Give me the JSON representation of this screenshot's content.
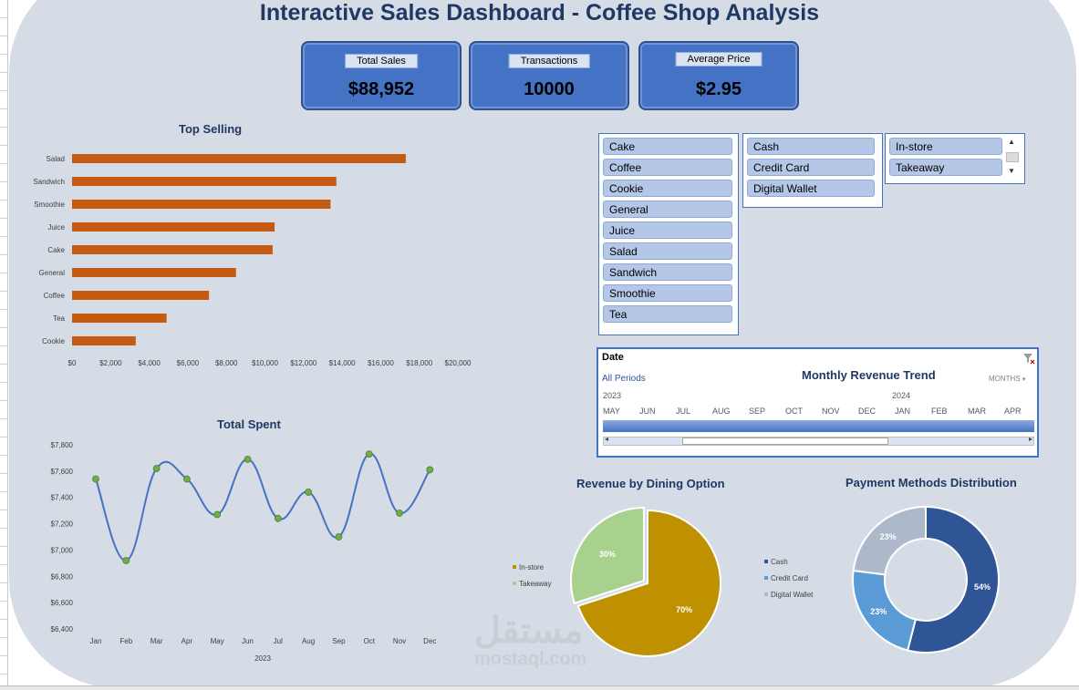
{
  "title": "Interactive Sales Dashboard - Coffee Shop Analysis",
  "kpis": {
    "total_sales": {
      "label": "Total Sales",
      "value": "$88,952"
    },
    "transactions": {
      "label": "Transactions",
      "value": "10000"
    },
    "average_price": {
      "label": "Average Price",
      "value": "$2.95"
    }
  },
  "slicers": {
    "product": [
      "Cake",
      "Coffee",
      "Cookie",
      "General",
      "Juice",
      "Salad",
      "Sandwich",
      "Smoothie",
      "Tea"
    ],
    "payment": [
      "Cash",
      "Credit Card",
      "Digital Wallet"
    ],
    "dining": [
      "In-store",
      "Takeaway"
    ]
  },
  "timeline": {
    "header": "Date",
    "all_periods": "All Periods",
    "title": "Monthly Revenue Trend",
    "level": "MONTHS",
    "years": [
      "2023",
      "2024"
    ],
    "months": [
      "MAY",
      "JUN",
      "JUL",
      "AUG",
      "SEP",
      "OCT",
      "NOV",
      "DEC",
      "JAN",
      "FEB",
      "MAR",
      "APR"
    ],
    "filter_icon": "clear-filter-icon"
  },
  "watermark": {
    "arabic": "مستقل",
    "latin": "mostaql.com"
  },
  "chart_data": [
    {
      "type": "bar",
      "title": "Top Selling",
      "categories": [
        "Salad",
        "Sandwich",
        "Smoothie",
        "Juice",
        "Cake",
        "General",
        "Coffee",
        "Tea",
        "Cookie"
      ],
      "values": [
        17300,
        13700,
        13400,
        10500,
        10400,
        8500,
        7100,
        4900,
        3300
      ],
      "xlim": [
        0,
        20000
      ],
      "xticks": [
        "$0",
        "$2,000",
        "$4,000",
        "$6,000",
        "$8,000",
        "$10,000",
        "$12,000",
        "$14,000",
        "$16,000",
        "$18,000",
        "$20,000"
      ],
      "color": "#c55a11"
    },
    {
      "type": "line",
      "title": "Total Spent",
      "x": [
        "Jan",
        "Feb",
        "Mar",
        "Apr",
        "May",
        "Jun",
        "Jul",
        "Aug",
        "Sep",
        "Oct",
        "Nov",
        "Dec"
      ],
      "xlabel": "2023",
      "values": [
        7540,
        6920,
        7620,
        7540,
        7270,
        7690,
        7240,
        7440,
        7100,
        7730,
        7280,
        7610
      ],
      "ylim": [
        6400,
        7800
      ],
      "yticks": [
        "$6,400",
        "$6,600",
        "$6,800",
        "$7,000",
        "$7,200",
        "$7,400",
        "$7,600",
        "$7,800"
      ],
      "line_color": "#4472c4",
      "marker_color": "#70ad47"
    },
    {
      "type": "pie",
      "title": "Revenue by Dining Option",
      "labels": [
        "In-store",
        "Takeaway"
      ],
      "values": [
        70,
        30
      ],
      "data_labels": [
        "70%",
        "30%"
      ],
      "colors": [
        "#bf9000",
        "#a9d18e"
      ],
      "legend": "left"
    },
    {
      "type": "pie",
      "subtype": "donut",
      "title": "Payment Methods Distribution",
      "labels": [
        "Cash",
        "Credit Card",
        "Digital Wallet"
      ],
      "values": [
        54,
        23,
        23
      ],
      "data_labels": [
        "54%",
        "23%",
        "23%"
      ],
      "colors": [
        "#2f5597",
        "#5b9bd5",
        "#adb9ca"
      ],
      "legend": "left"
    }
  ]
}
